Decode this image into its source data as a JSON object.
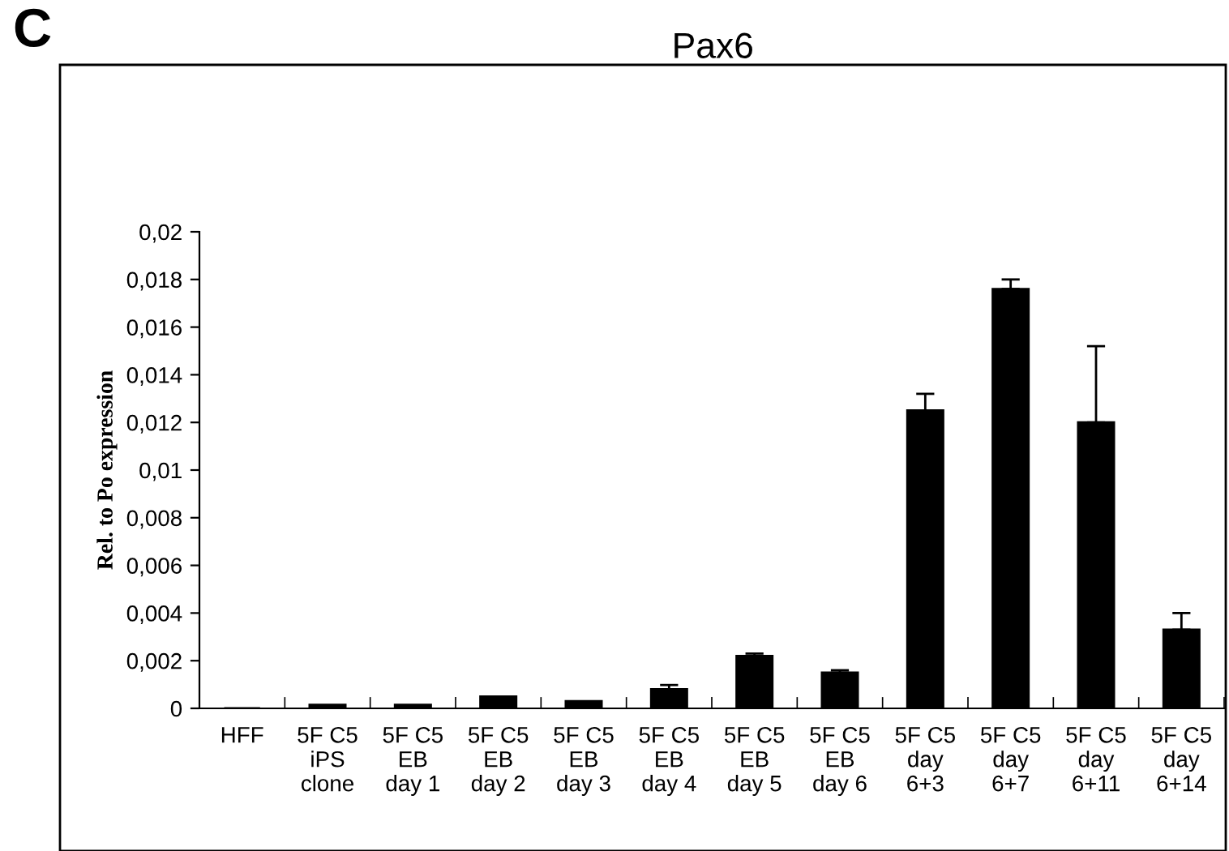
{
  "chart_data": {
    "type": "bar",
    "title": "Pax6",
    "ylabel": "Rel. to Po expression",
    "annotations": [
      "C"
    ],
    "categories": [
      "HFF",
      "5F C5\niPS\nclone",
      "5F C5\nEB\nday 1",
      "5F C5\nEB\nday 2",
      "5F C5\nEB\nday 3",
      "5F C5\nEB\nday 4",
      "5F C5\nEB\nday 5",
      "5F C5\nEB\nday 6",
      "5F C5\nday\n6+3",
      "5F C5\nday\n6+7",
      "5F C5\nday\n6+11",
      "5F C5\nday\n6+14"
    ],
    "values": [
      0,
      0.00015,
      0.00015,
      0.0005,
      0.0003,
      0.0008,
      0.0022,
      0.0015,
      0.0125,
      0.0176,
      0.012,
      0.0033
    ],
    "errors": [
      null,
      null,
      null,
      null,
      null,
      [
        0.0008,
        0.00098
      ],
      [
        0.0022,
        0.0023
      ],
      [
        0.0015,
        0.0016
      ],
      [
        0.0125,
        0.0132
      ],
      [
        0.0176,
        0.018
      ],
      [
        0.012,
        0.0152
      ],
      [
        0.0033,
        0.004
      ]
    ],
    "color": "#000000",
    "ylim": [
      0,
      0.02
    ],
    "yticks": [
      0,
      {
        "value": 0.002,
        "label": "0,002"
      },
      {
        "value": 0.004,
        "label": "0,004"
      },
      {
        "value": 0.006,
        "label": "0,006"
      },
      {
        "value": 0.008,
        "label": "0,008"
      },
      {
        "value": 0.01,
        "label": "0,01"
      },
      {
        "value": 0.012,
        "label": "0,012"
      },
      {
        "value": 0.014,
        "label": "0,014"
      },
      {
        "value": 0.016,
        "label": "0,016"
      },
      {
        "value": 0.018,
        "label": "0,018"
      },
      {
        "value": 0.02,
        "label": "0,02"
      }
    ],
    "grid": false,
    "legend": false
  }
}
